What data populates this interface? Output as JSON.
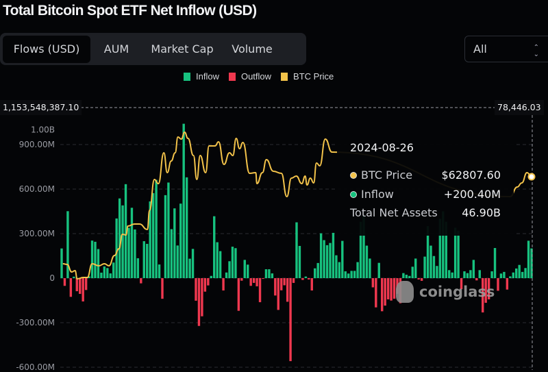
{
  "header": {
    "title": "Total Bitcoin Spot ETF Net Inflow (USD)"
  },
  "tabs": [
    {
      "label": "Flows (USD)",
      "active": true
    },
    {
      "label": "AUM",
      "active": false
    },
    {
      "label": "Market Cap",
      "active": false
    },
    {
      "label": "Volume",
      "active": false
    }
  ],
  "range_select": {
    "value": "All",
    "icon": "chevron-up-down-icon"
  },
  "legend": [
    {
      "label": "Inflow",
      "color": "#17c27f"
    },
    {
      "label": "Outflow",
      "color": "#f0384f"
    },
    {
      "label": "BTC Price",
      "color": "#f3c34a"
    }
  ],
  "crosshair": {
    "left_value": "1,153,548,387.10",
    "right_value": "78,446.03"
  },
  "tooltip": {
    "date": "2024-08-26",
    "rows": [
      {
        "label": "BTC Price",
        "value": "$62807.60",
        "color": "#f3c34a"
      },
      {
        "label": "Inflow",
        "value": "+200.40M",
        "color": "#17c27f"
      },
      {
        "label": "Total Net Assets",
        "value": "46.90B"
      }
    ]
  },
  "watermark": "coinglass",
  "chart_data": {
    "type": "bar",
    "title": "Total Bitcoin Spot ETF Net Inflow (USD)",
    "y_unit": "USD (millions)",
    "ylim": [
      -600,
      1000
    ],
    "grid": true,
    "legend_placement": "top",
    "y_ticks": [
      {
        "value": 1000,
        "label": "1.00B"
      },
      {
        "value": 900,
        "label": "900.00M"
      },
      {
        "value": 600,
        "label": "600.00M"
      },
      {
        "value": 300,
        "label": "300.00M"
      },
      {
        "value": 0,
        "label": "0"
      },
      {
        "value": -300,
        "label": "-300.00M"
      },
      {
        "value": -600,
        "label": "-600.00M"
      }
    ],
    "last_date": "2024-08-26",
    "net_flows": [
      200,
      -52,
      451,
      -126,
      10,
      -88,
      -106,
      -157,
      -80,
      12,
      253,
      245,
      196,
      37,
      79,
      68,
      32,
      105,
      402,
      537,
      490,
      633,
      339,
      474,
      328,
      134,
      -35,
      249,
      231,
      517,
      573,
      662,
      92,
      -139,
      559,
      644,
      330,
      470,
      220,
      502,
      1040,
      679,
      131,
      197,
      -152,
      -322,
      -257,
      -91,
      -49,
      15,
      417,
      242,
      182,
      -83,
      38,
      114,
      212,
      202,
      -220,
      -17,
      123,
      91,
      -52,
      -32,
      -55,
      -162,
      -5,
      60,
      60,
      32,
      -117,
      -214,
      -82,
      -48,
      -159,
      -559,
      -32,
      376,
      217,
      -12,
      11,
      -9,
      -83,
      66,
      102,
      302,
      256,
      222,
      237,
      305,
      154,
      108,
      251,
      46,
      31,
      49,
      49,
      108,
      380,
      420,
      219,
      132,
      -62,
      -197,
      103,
      -223,
      -185,
      -143,
      -151,
      -139,
      -105,
      -169,
      34,
      23,
      15,
      77,
      132,
      -9,
      -18,
      145,
      350,
      219,
      149,
      82,
      400,
      450,
      380,
      54,
      38,
      340,
      320,
      -74,
      46,
      34,
      54,
      123,
      -15,
      54,
      -231,
      -166,
      -143,
      46,
      203,
      -85,
      31,
      42,
      -77,
      12,
      38,
      65,
      89,
      42,
      68,
      252,
      200.4
    ],
    "btc_price": [
      [
        0.4,
        43150
      ],
      [
        1.8,
        43000
      ],
      [
        3.3,
        41300
      ],
      [
        4.4,
        41600
      ],
      [
        5.1,
        39750
      ],
      [
        7.1,
        40050
      ],
      [
        8.4,
        40050
      ],
      [
        10,
        43150
      ],
      [
        12.2,
        42690
      ],
      [
        14,
        43150
      ],
      [
        15.5,
        42690
      ],
      [
        17.3,
        45010
      ],
      [
        18.8,
        46560
      ],
      [
        19.9,
        49810
      ],
      [
        21.1,
        49650
      ],
      [
        21.7,
        51670
      ],
      [
        23.9,
        52130
      ],
      [
        25.5,
        52130
      ],
      [
        28.1,
        50890
      ],
      [
        28.8,
        55230
      ],
      [
        30.4,
        62190
      ],
      [
        31.7,
        61260
      ],
      [
        33.5,
        68230
      ],
      [
        34.6,
        63740
      ],
      [
        35.9,
        66370
      ],
      [
        37.2,
        68230
      ],
      [
        38.1,
        71790
      ],
      [
        39.2,
        71330
      ],
      [
        40.3,
        72870
      ],
      [
        41.4,
        71480
      ],
      [
        43.2,
        67610
      ],
      [
        44.3,
        62190
      ],
      [
        45.4,
        67610
      ],
      [
        47.2,
        63740
      ],
      [
        48.3,
        69780
      ],
      [
        50.3,
        69780
      ],
      [
        51.4,
        70710
      ],
      [
        53.2,
        65600
      ],
      [
        55,
        68230
      ],
      [
        56.1,
        67610
      ],
      [
        57.2,
        71480
      ],
      [
        58.3,
        69160
      ],
      [
        59.4,
        70550
      ],
      [
        61.6,
        63590
      ],
      [
        63.6,
        63740
      ],
      [
        64,
        61260
      ],
      [
        65.8,
        63740
      ],
      [
        67.1,
        66680
      ],
      [
        69.4,
        64050
      ],
      [
        72,
        63590
      ],
      [
        73.8,
        58320
      ],
      [
        75.3,
        62500
      ],
      [
        76.9,
        62970
      ],
      [
        78.7,
        61260
      ],
      [
        79.8,
        62970
      ],
      [
        80.4,
        60950
      ],
      [
        81.5,
        62500
      ],
      [
        82.6,
        61420
      ],
      [
        83.5,
        65910
      ],
      [
        84.6,
        65290
      ],
      [
        86.4,
        71330
      ],
      [
        88.6,
        68380
      ],
      [
        147,
        58320
      ],
      [
        149.3,
        60490
      ],
      [
        150.8,
        61420
      ],
      [
        152.5,
        63740
      ],
      [
        154,
        62807.6
      ]
    ],
    "colors": {
      "inflow": "#17c27f",
      "outflow": "#f0384f",
      "price": "#f3c34a"
    }
  }
}
